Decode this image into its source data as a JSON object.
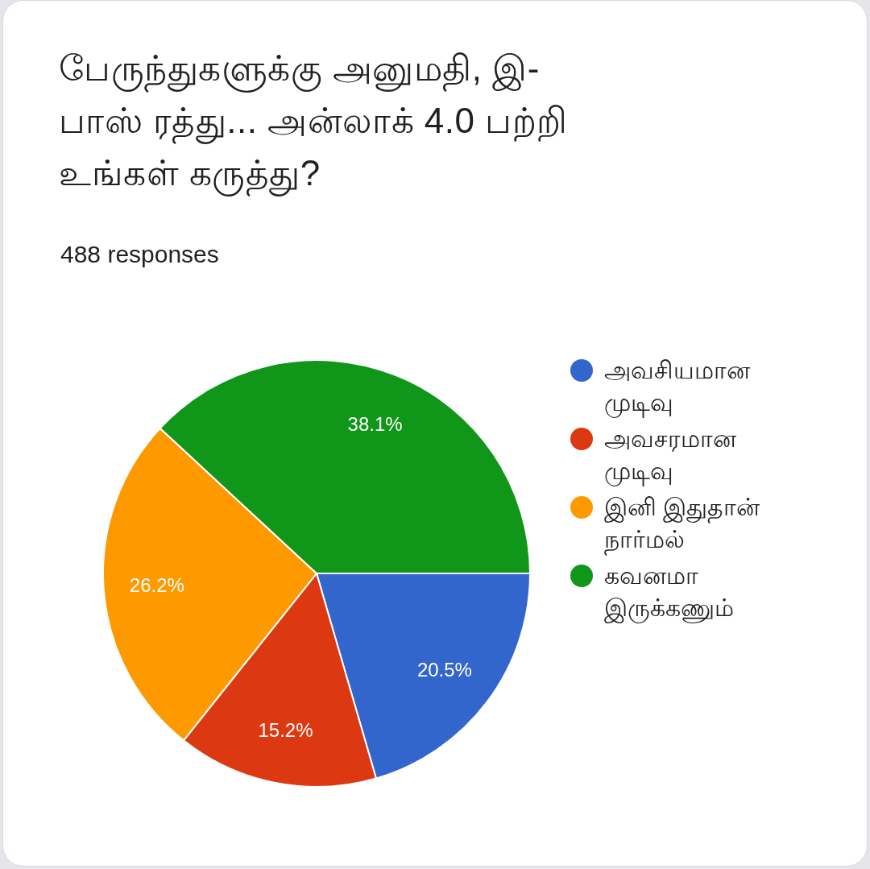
{
  "chart_data": {
    "type": "pie",
    "title": "பேருந்துகளுக்கு அனுமதி, இ-பாஸ் ரத்து... அன்லாக் 4.0 பற்றி உங்கள் கருத்து?",
    "subtitle": "488 responses",
    "categories": [
      "அவசியமான முடிவு",
      "அவசரமான முடிவு",
      "இனி இதுதான் நார்மல்",
      "கவனமா இருக்கணும்"
    ],
    "values": [
      20.5,
      15.2,
      26.2,
      38.1
    ],
    "colors": [
      "#3366cc",
      "#dc3912",
      "#ff9900",
      "#109618"
    ],
    "value_labels": [
      "20.5%",
      "15.2%",
      "26.2%",
      "38.1%"
    ],
    "legend": "right"
  }
}
